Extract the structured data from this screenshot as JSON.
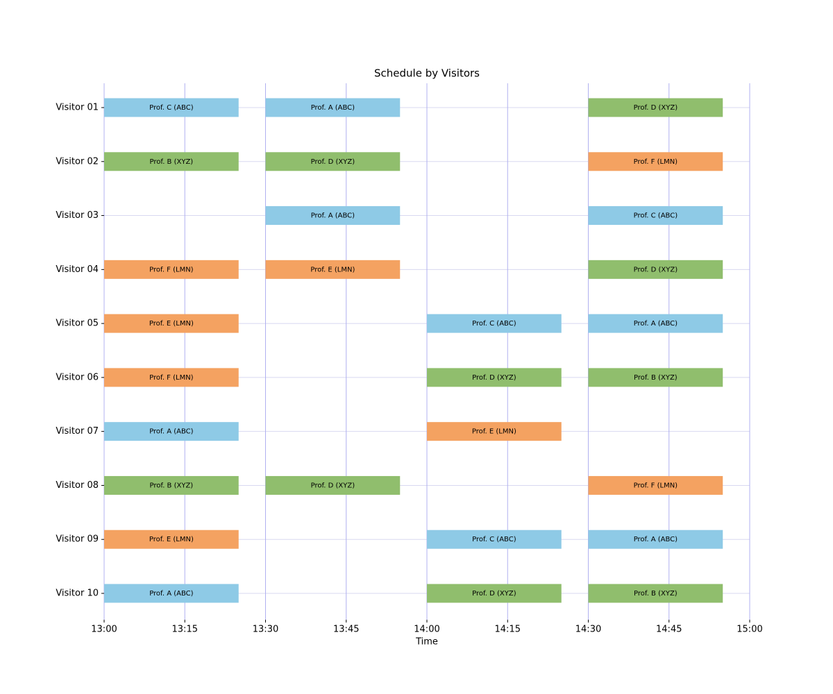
{
  "chart_data": {
    "type": "gantt",
    "title": "Schedule by Visitors",
    "x_label": "Time",
    "xlim": [
      780,
      900
    ],
    "xticks": [
      {
        "value": 780,
        "label": "13:00"
      },
      {
        "value": 795,
        "label": "13:15"
      },
      {
        "value": 810,
        "label": "13:30"
      },
      {
        "value": 825,
        "label": "13:45"
      },
      {
        "value": 840,
        "label": "14:00"
      },
      {
        "value": 855,
        "label": "14:15"
      },
      {
        "value": 870,
        "label": "14:30"
      },
      {
        "value": 885,
        "label": "14:45"
      },
      {
        "value": 900,
        "label": "15:00"
      }
    ],
    "grid": true,
    "rows": [
      {
        "name": "Visitor 01",
        "meetings": [
          {
            "label": "Prof. C (ABC)",
            "start": 780,
            "end": 805,
            "color": "#8ecae6"
          },
          {
            "label": "Prof. A (ABC)",
            "start": 810,
            "end": 835,
            "color": "#8ecae6"
          },
          {
            "label": "Prof. D (XYZ)",
            "start": 870,
            "end": 895,
            "color": "#90be6d"
          }
        ]
      },
      {
        "name": "Visitor 02",
        "meetings": [
          {
            "label": "Prof. B (XYZ)",
            "start": 780,
            "end": 805,
            "color": "#90be6d"
          },
          {
            "label": "Prof. D (XYZ)",
            "start": 810,
            "end": 835,
            "color": "#90be6d"
          },
          {
            "label": "Prof. F (LMN)",
            "start": 870,
            "end": 895,
            "color": "#f4a261"
          }
        ]
      },
      {
        "name": "Visitor 03",
        "meetings": [
          {
            "label": "Prof. A (ABC)",
            "start": 810,
            "end": 835,
            "color": "#8ecae6"
          },
          {
            "label": "Prof. C (ABC)",
            "start": 870,
            "end": 895,
            "color": "#8ecae6"
          }
        ]
      },
      {
        "name": "Visitor 04",
        "meetings": [
          {
            "label": "Prof. F (LMN)",
            "start": 780,
            "end": 805,
            "color": "#f4a261"
          },
          {
            "label": "Prof. E (LMN)",
            "start": 810,
            "end": 835,
            "color": "#f4a261"
          },
          {
            "label": "Prof. D (XYZ)",
            "start": 870,
            "end": 895,
            "color": "#90be6d"
          }
        ]
      },
      {
        "name": "Visitor 05",
        "meetings": [
          {
            "label": "Prof. E (LMN)",
            "start": 780,
            "end": 805,
            "color": "#f4a261"
          },
          {
            "label": "Prof. C (ABC)",
            "start": 840,
            "end": 865,
            "color": "#8ecae6"
          },
          {
            "label": "Prof. A (ABC)",
            "start": 870,
            "end": 895,
            "color": "#8ecae6"
          }
        ]
      },
      {
        "name": "Visitor 06",
        "meetings": [
          {
            "label": "Prof. F (LMN)",
            "start": 780,
            "end": 805,
            "color": "#f4a261"
          },
          {
            "label": "Prof. D (XYZ)",
            "start": 840,
            "end": 865,
            "color": "#90be6d"
          },
          {
            "label": "Prof. B (XYZ)",
            "start": 870,
            "end": 895,
            "color": "#90be6d"
          }
        ]
      },
      {
        "name": "Visitor 07",
        "meetings": [
          {
            "label": "Prof. A (ABC)",
            "start": 780,
            "end": 805,
            "color": "#8ecae6"
          },
          {
            "label": "Prof. E (LMN)",
            "start": 840,
            "end": 865,
            "color": "#f4a261"
          }
        ]
      },
      {
        "name": "Visitor 08",
        "meetings": [
          {
            "label": "Prof. B (XYZ)",
            "start": 780,
            "end": 805,
            "color": "#90be6d"
          },
          {
            "label": "Prof. D (XYZ)",
            "start": 810,
            "end": 835,
            "color": "#90be6d"
          },
          {
            "label": "Prof. F (LMN)",
            "start": 870,
            "end": 895,
            "color": "#f4a261"
          }
        ]
      },
      {
        "name": "Visitor 09",
        "meetings": [
          {
            "label": "Prof. E (LMN)",
            "start": 780,
            "end": 805,
            "color": "#f4a261"
          },
          {
            "label": "Prof. C (ABC)",
            "start": 840,
            "end": 865,
            "color": "#8ecae6"
          },
          {
            "label": "Prof. A (ABC)",
            "start": 870,
            "end": 895,
            "color": "#8ecae6"
          }
        ]
      },
      {
        "name": "Visitor 10",
        "meetings": [
          {
            "label": "Prof. A (ABC)",
            "start": 780,
            "end": 805,
            "color": "#8ecae6"
          },
          {
            "label": "Prof. D (XYZ)",
            "start": 840,
            "end": 865,
            "color": "#90be6d"
          },
          {
            "label": "Prof. B (XYZ)",
            "start": 870,
            "end": 895,
            "color": "#90be6d"
          }
        ]
      }
    ]
  }
}
